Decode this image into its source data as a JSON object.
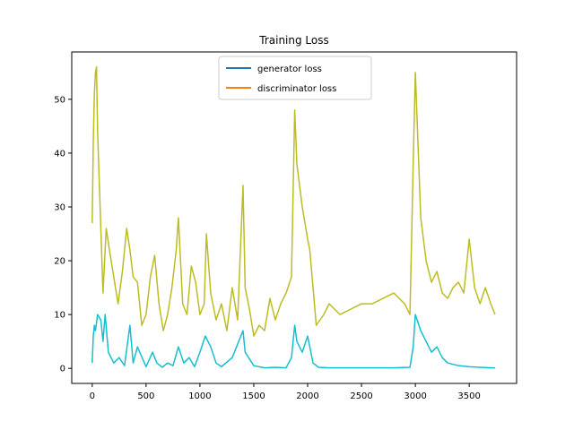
{
  "chart_data": {
    "type": "line",
    "title": "Training Loss",
    "xlabel": "",
    "ylabel": "",
    "xlim": [
      -190,
      3940
    ],
    "ylim": [
      -2.8,
      58.8
    ],
    "x_ticks": [
      0,
      500,
      1000,
      1500,
      2000,
      2500,
      3000,
      3500
    ],
    "y_ticks": [
      0,
      10,
      20,
      30,
      40,
      50
    ],
    "grid": false,
    "legend_placement": "top-center",
    "legend": [
      {
        "label": "generator loss",
        "color": "#1f77b4"
      },
      {
        "label": "discriminator loss",
        "color": "#ff7f0e"
      }
    ],
    "series": [
      {
        "name": "generator loss",
        "color": "#bcbd22",
        "x": [
          0,
          10,
          20,
          30,
          40,
          50,
          60,
          80,
          100,
          130,
          160,
          200,
          240,
          280,
          320,
          350,
          380,
          420,
          460,
          500,
          540,
          580,
          620,
          660,
          700,
          740,
          780,
          800,
          840,
          880,
          920,
          960,
          1000,
          1040,
          1060,
          1100,
          1150,
          1200,
          1250,
          1300,
          1350,
          1400,
          1420,
          1460,
          1500,
          1550,
          1600,
          1650,
          1700,
          1750,
          1800,
          1850,
          1880,
          1900,
          1950,
          2000,
          2020,
          2080,
          2150,
          2200,
          2300,
          2400,
          2500,
          2600,
          2700,
          2800,
          2900,
          2950,
          2980,
          3000,
          3050,
          3100,
          3150,
          3200,
          3250,
          3300,
          3350,
          3400,
          3450,
          3500,
          3550,
          3600,
          3650,
          3700,
          3740
        ],
        "values": [
          27,
          42,
          51,
          55,
          56,
          44,
          38,
          26,
          14,
          26,
          22,
          17,
          12,
          18,
          26,
          22,
          17,
          16,
          8,
          10,
          17,
          21,
          12,
          7,
          10,
          15,
          22,
          28,
          12,
          10,
          19,
          16,
          10,
          12,
          25,
          14,
          9,
          12,
          7,
          15,
          9,
          34,
          15,
          11,
          6,
          8,
          7,
          13,
          9,
          12,
          14,
          17,
          48,
          38,
          30,
          24,
          22,
          8,
          10,
          12,
          10,
          11,
          12,
          12,
          13,
          14,
          12,
          10,
          38,
          55,
          28,
          20,
          16,
          18,
          14,
          13,
          15,
          16,
          14,
          24,
          15,
          12,
          15,
          12,
          10
        ]
      },
      {
        "name": "discriminator loss",
        "color": "#17becf",
        "x": [
          0,
          10,
          20,
          30,
          50,
          80,
          100,
          120,
          150,
          200,
          250,
          300,
          350,
          380,
          420,
          500,
          560,
          600,
          650,
          700,
          750,
          800,
          850,
          900,
          950,
          1000,
          1050,
          1100,
          1150,
          1200,
          1300,
          1400,
          1420,
          1500,
          1600,
          1700,
          1800,
          1850,
          1880,
          1900,
          1950,
          2000,
          2050,
          2100,
          2200,
          2400,
          2600,
          2800,
          2950,
          2980,
          3000,
          3050,
          3100,
          3150,
          3200,
          3250,
          3300,
          3400,
          3500,
          3600,
          3700,
          3740
        ],
        "values": [
          1,
          6,
          8,
          7,
          10,
          9,
          5,
          10,
          3,
          1,
          2,
          0.5,
          8,
          1,
          4,
          0.3,
          3,
          1,
          0.2,
          1,
          0.5,
          4,
          1,
          2,
          0.3,
          3,
          6,
          4,
          1,
          0.3,
          2,
          7,
          3,
          0.5,
          0.1,
          0.2,
          0.1,
          2,
          8,
          5,
          3,
          6,
          1,
          0.2,
          0.1,
          0.1,
          0.1,
          0.1,
          0.2,
          4,
          10,
          7,
          5,
          3,
          4,
          2,
          1,
          0.5,
          0.3,
          0.2,
          0.1,
          0.1
        ]
      }
    ]
  }
}
